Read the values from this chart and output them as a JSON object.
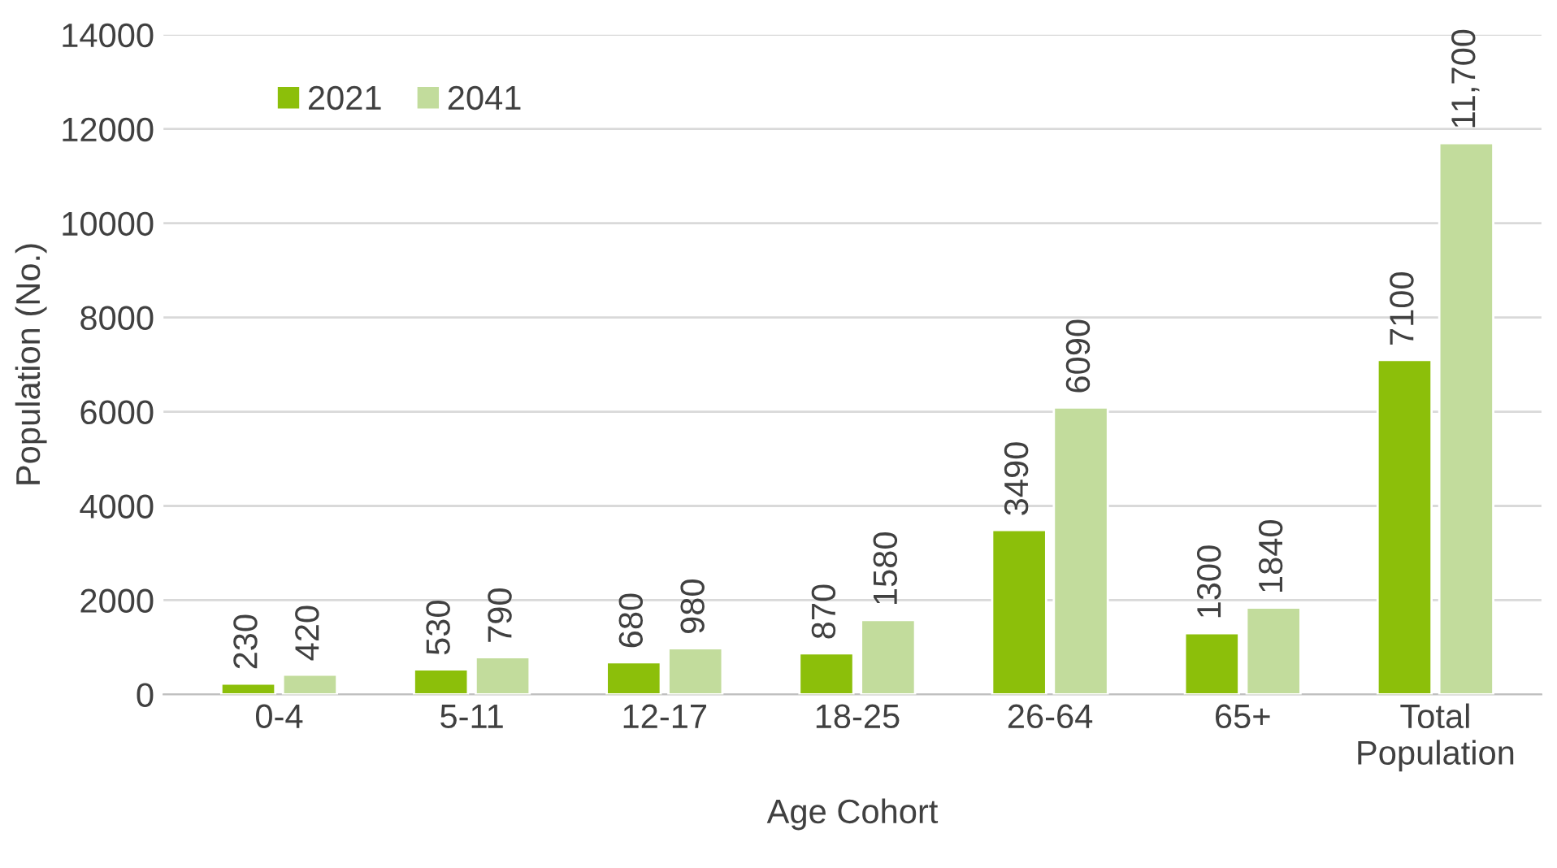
{
  "chart_data": {
    "type": "bar",
    "xlabel": "Age Cohort",
    "ylabel": "Population (No.)",
    "categories": [
      "0-4",
      "5-11",
      "12-17",
      "18-25",
      "26-64",
      "65+",
      "Total\nPopulation"
    ],
    "series": [
      {
        "name": "2021",
        "color": "#8cbf0a",
        "values": [
          230,
          530,
          680,
          870,
          3490,
          1300,
          7100
        ],
        "value_labels": [
          "230",
          "530",
          "680",
          "870",
          "3490",
          "1300",
          "7100"
        ]
      },
      {
        "name": "2041",
        "color": "#c2dc9c",
        "values": [
          420,
          790,
          980,
          1580,
          6090,
          1840,
          11700
        ],
        "value_labels": [
          "420",
          "790",
          "980",
          "1580",
          "6090",
          "1840",
          "11,700"
        ]
      }
    ],
    "ylim": [
      0,
      14000
    ],
    "yticks": [
      0,
      2000,
      4000,
      6000,
      8000,
      10000,
      12000,
      14000
    ],
    "grid": "y",
    "legend": "top left"
  }
}
